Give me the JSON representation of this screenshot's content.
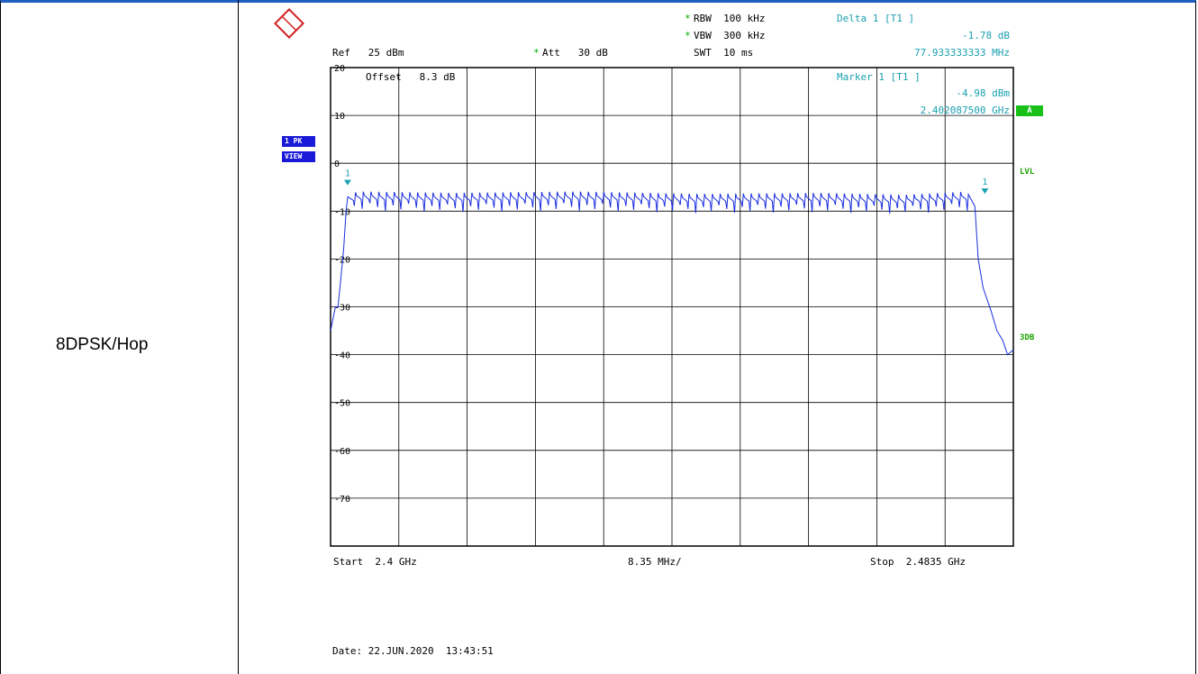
{
  "row_label": "8DPSK/Hop",
  "header": {
    "rbw": "RBW  100 kHz",
    "vbw": "VBW  300 kHz",
    "swt": "SWT  10 ms",
    "ref": "Ref   25 dBm",
    "att": "Att   30 dB",
    "offset": "Offset   8.3 dB",
    "delta_title": "Delta 1 [T1 ]",
    "delta_value": "-1.78 dB",
    "delta_freq": "77.933333333 MHz",
    "marker_title": "Marker 1 [T1 ]",
    "marker_value": "-4.98 dBm",
    "marker_freq": "2.402087500 GHz",
    "star": "*"
  },
  "side_tags": {
    "pk": "1 PK",
    "view": "VIEW",
    "a": "A",
    "lvl": "LVL",
    "db3": "3DB"
  },
  "footer": {
    "start": "Start  2.4 GHz",
    "span": "8.35 MHz/",
    "stop": "Stop  2.4835 GHz",
    "date": "Date: 22.JUN.2020  13:43:51"
  },
  "colors": {
    "trace": "#1a2ee0",
    "marker": "#1aa0b0",
    "grid": "#000000"
  },
  "chart_data": {
    "type": "line",
    "xlabel": "",
    "ylabel": "",
    "xlim": [
      2.4,
      2.4835
    ],
    "ylim": [
      -80,
      20
    ],
    "y_ticks": [
      20,
      10,
      0,
      -10,
      -20,
      -30,
      -40,
      -50,
      -60,
      -70
    ],
    "grid": true,
    "series": [
      {
        "x": [
          2.4,
          2.4006,
          2.4009,
          2.4012,
          2.4016,
          2.4019,
          2.4021,
          2.4035,
          2.415,
          2.43,
          2.445,
          2.46,
          2.47,
          2.478,
          2.4788,
          2.4792,
          2.4798,
          2.4808,
          2.4815,
          2.4822,
          2.4828,
          2.4835
        ],
        "y": [
          -35,
          -30,
          -30,
          -25,
          -18,
          -10,
          -7,
          -6.5,
          -6.8,
          -6.5,
          -7,
          -6.8,
          -7.2,
          -6.5,
          -9,
          -20,
          -26,
          -31,
          -35,
          -37,
          -40,
          -39
        ]
      }
    ],
    "markers": [
      {
        "label": "1",
        "x": 2.4020875,
        "y": -4.98
      },
      {
        "label": "1",
        "x": 2.480021,
        "y": -6.76
      }
    ]
  }
}
